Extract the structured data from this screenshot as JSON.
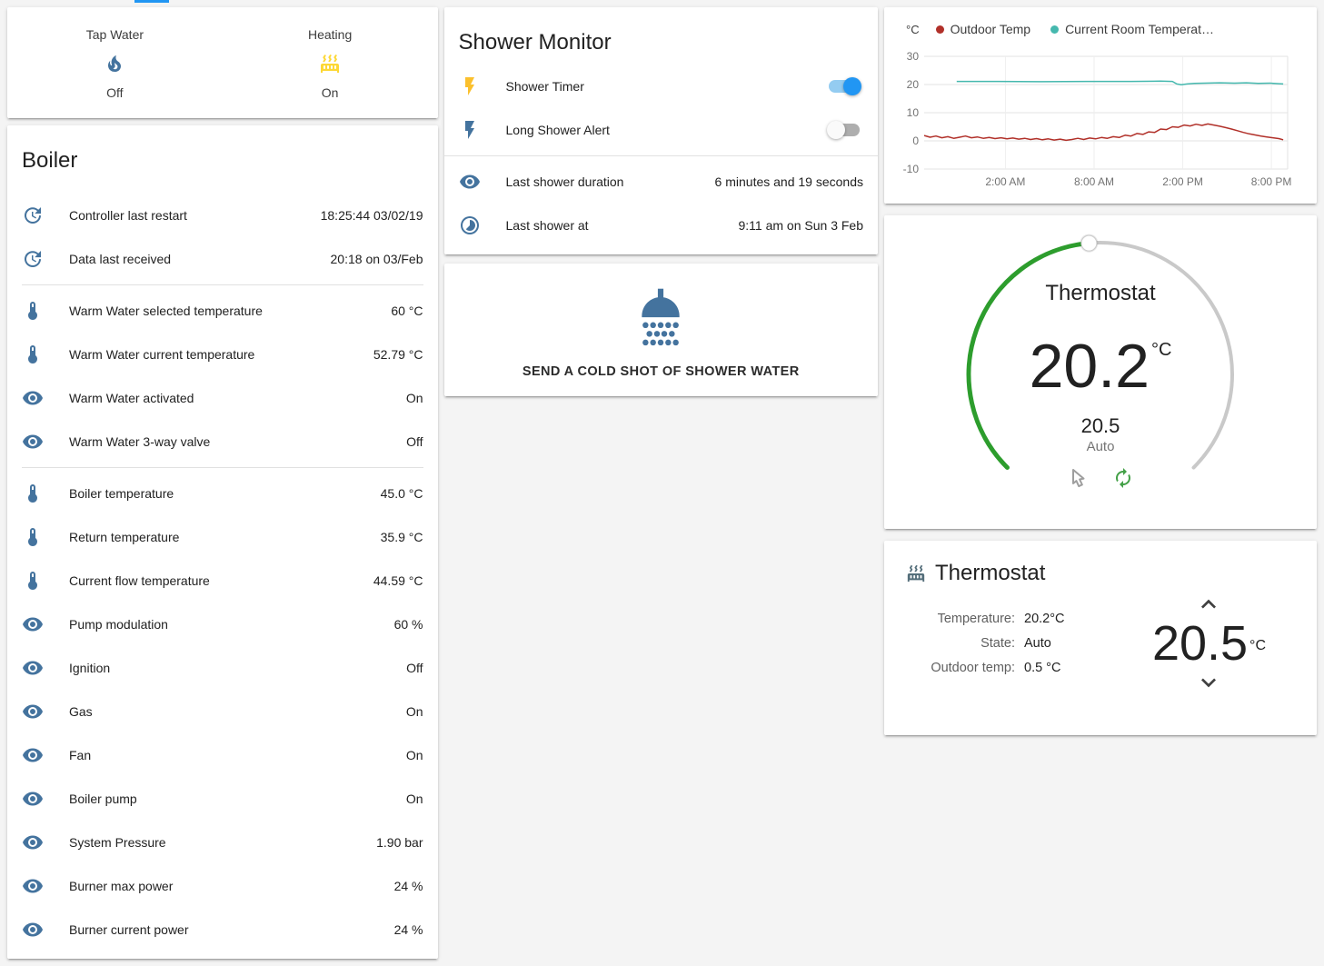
{
  "colors": {
    "accent": "#2196f3",
    "icon_blue": "#44739e",
    "icon_yellow": "#fdd835",
    "bolt_yellow": "#fbc02d",
    "dial_green": "#2d9d2d",
    "autorenew_green": "#43a047",
    "hand_gray": "#9e9e9e",
    "chevron_gray": "#404040"
  },
  "glance": {
    "items": [
      {
        "label": "Tap Water",
        "icon": "fire-icon",
        "icon_color": "#44739e",
        "state": "Off"
      },
      {
        "label": "Heating",
        "icon": "radiator-icon",
        "icon_color": "#fdd835",
        "state": "On"
      }
    ]
  },
  "boiler": {
    "title": "Boiler",
    "sections": [
      [
        {
          "icon": "clock-arrow-icon",
          "label": "Controller last restart",
          "value": "18:25:44 03/02/19"
        },
        {
          "icon": "clock-arrow-icon",
          "label": "Data last received",
          "value": "20:18 on 03/Feb"
        }
      ],
      [
        {
          "icon": "thermometer-icon",
          "label": "Warm Water selected temperature",
          "value": "60 °C"
        },
        {
          "icon": "thermometer-icon",
          "label": "Warm Water current temperature",
          "value": "52.79 °C"
        },
        {
          "icon": "eye-icon",
          "label": "Warm Water activated",
          "value": "On"
        },
        {
          "icon": "eye-icon",
          "label": "Warm Water 3-way valve",
          "value": "Off"
        }
      ],
      [
        {
          "icon": "thermometer-icon",
          "label": "Boiler temperature",
          "value": "45.0 °C"
        },
        {
          "icon": "thermometer-icon",
          "label": "Return temperature",
          "value": "35.9 °C"
        },
        {
          "icon": "thermometer-icon",
          "label": "Current flow temperature",
          "value": "44.59 °C"
        },
        {
          "icon": "eye-icon",
          "label": "Pump modulation",
          "value": "60 %"
        },
        {
          "icon": "eye-icon",
          "label": "Ignition",
          "value": "Off"
        },
        {
          "icon": "eye-icon",
          "label": "Gas",
          "value": "On"
        },
        {
          "icon": "eye-icon",
          "label": "Fan",
          "value": "On"
        },
        {
          "icon": "eye-icon",
          "label": "Boiler pump",
          "value": "On"
        },
        {
          "icon": "eye-icon",
          "label": "System Pressure",
          "value": "1.90 bar"
        },
        {
          "icon": "eye-icon",
          "label": "Burner max power",
          "value": "24 %"
        },
        {
          "icon": "eye-icon",
          "label": "Burner current power",
          "value": "24 %"
        }
      ]
    ]
  },
  "shower_monitor": {
    "title": "Shower Monitor",
    "toggles": [
      {
        "icon": "flash-icon",
        "icon_color": "#fbc02d",
        "label": "Shower Timer",
        "state": "on"
      },
      {
        "icon": "flash-icon",
        "icon_color": "#44739e",
        "label": "Long Shower Alert",
        "state": "off"
      }
    ],
    "info": [
      {
        "icon": "eye-icon",
        "icon_color": "#44739e",
        "label": "Last shower duration",
        "value": "6 minutes and 19 seconds"
      },
      {
        "icon": "timelapse-icon",
        "icon_color": "#44739e",
        "label": "Last shower at",
        "value": "9:11 am on Sun 3 Feb"
      }
    ]
  },
  "cold_shot": {
    "button_label": "SEND A COLD SHOT OF SHOWER WATER"
  },
  "chart_data": {
    "type": "line",
    "unit": "°C",
    "ylim": [
      -10,
      30
    ],
    "yticks": [
      30,
      20,
      10,
      0,
      -10
    ],
    "xlim": [
      0,
      24.6
    ],
    "xticks": [
      {
        "x": 5.5,
        "label": "2:00 AM"
      },
      {
        "x": 11.5,
        "label": "8:00 AM"
      },
      {
        "x": 17.5,
        "label": "2:00 PM"
      },
      {
        "x": 23.5,
        "label": "8:00 PM"
      }
    ],
    "legend_position": "top",
    "grid": true,
    "series": [
      {
        "name": "Outdoor Temp",
        "color": "#b13029",
        "points": [
          [
            0,
            1.9
          ],
          [
            0.4,
            1.3
          ],
          [
            0.8,
            1.7
          ],
          [
            1.2,
            1.1
          ],
          [
            1.6,
            1.5
          ],
          [
            2,
            0.9
          ],
          [
            2.4,
            1.3
          ],
          [
            2.8,
            1.7
          ],
          [
            3.2,
            1.1
          ],
          [
            3.6,
            1.4
          ],
          [
            4,
            0.9
          ],
          [
            4.4,
            1.2
          ],
          [
            4.8,
            0.8
          ],
          [
            5.2,
            1.1
          ],
          [
            5.6,
            0.7
          ],
          [
            6,
            1.0
          ],
          [
            6.4,
            0.6
          ],
          [
            6.8,
            0.9
          ],
          [
            7.2,
            0.5
          ],
          [
            7.6,
            0.8
          ],
          [
            8,
            0.4
          ],
          [
            8.4,
            0.7
          ],
          [
            8.8,
            0.3
          ],
          [
            9.2,
            0.6
          ],
          [
            9.6,
            0.2
          ],
          [
            10,
            0.5
          ],
          [
            10.4,
            0.9
          ],
          [
            10.8,
            0.5
          ],
          [
            11.2,
            1.0
          ],
          [
            11.6,
            0.7
          ],
          [
            12,
            1.2
          ],
          [
            12.4,
            0.9
          ],
          [
            12.8,
            1.5
          ],
          [
            13.2,
            1.2
          ],
          [
            13.6,
            2.0
          ],
          [
            14,
            1.7
          ],
          [
            14.4,
            2.6
          ],
          [
            14.8,
            2.3
          ],
          [
            15.2,
            3.2
          ],
          [
            15.6,
            3.0
          ],
          [
            16,
            4.2
          ],
          [
            16.4,
            4.0
          ],
          [
            16.8,
            5.0
          ],
          [
            17.2,
            4.8
          ],
          [
            17.6,
            5.6
          ],
          [
            18,
            5.3
          ],
          [
            18.4,
            5.9
          ],
          [
            18.8,
            5.5
          ],
          [
            19.2,
            6.0
          ],
          [
            19.6,
            5.6
          ],
          [
            20,
            5.2
          ],
          [
            20.4,
            4.7
          ],
          [
            20.8,
            4.2
          ],
          [
            21.2,
            3.6
          ],
          [
            21.6,
            3.0
          ],
          [
            22,
            2.5
          ],
          [
            22.4,
            2.1
          ],
          [
            22.8,
            1.7
          ],
          [
            23.2,
            1.4
          ],
          [
            23.6,
            1.1
          ],
          [
            24,
            0.8
          ],
          [
            24.3,
            0.4
          ]
        ]
      },
      {
        "name": "Current Room Temperat…",
        "color": "#45b8ae",
        "points": [
          [
            2.2,
            21.1
          ],
          [
            5,
            21.1
          ],
          [
            8,
            21.0
          ],
          [
            11,
            21.1
          ],
          [
            14,
            21.1
          ],
          [
            16,
            21.2
          ],
          [
            16.8,
            21.1
          ],
          [
            17.1,
            20.2
          ],
          [
            17.4,
            19.9
          ],
          [
            17.8,
            20.2
          ],
          [
            18.3,
            20.4
          ],
          [
            19,
            20.5
          ],
          [
            20,
            20.6
          ],
          [
            21,
            20.5
          ],
          [
            21.8,
            20.6
          ],
          [
            22.6,
            20.4
          ],
          [
            23.4,
            20.5
          ],
          [
            24,
            20.3
          ],
          [
            24.3,
            20.2
          ]
        ]
      }
    ]
  },
  "dial": {
    "title": "Thermostat",
    "current": "20.2",
    "unit": "°C",
    "target": "20.5",
    "mode": "Auto"
  },
  "thermostat": {
    "title": "Thermostat",
    "rows": [
      {
        "label": "Temperature:",
        "value": "20.2°C"
      },
      {
        "label": "State:",
        "value": "Auto"
      },
      {
        "label": "Outdoor temp:",
        "value": "0.5 °C"
      }
    ],
    "target": "20.5",
    "unit": "°C"
  }
}
